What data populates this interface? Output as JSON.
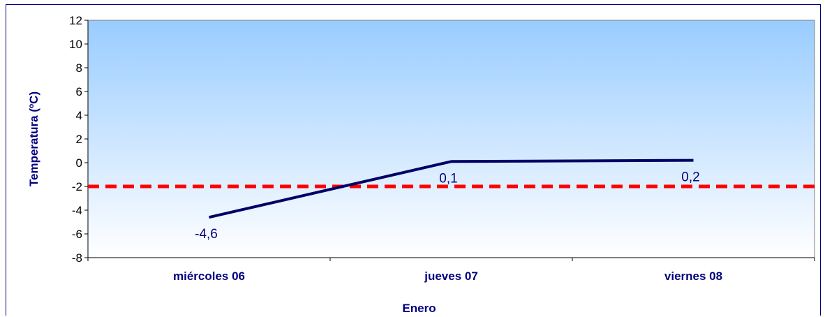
{
  "chart_data": {
    "type": "line",
    "categories": [
      "miércoles 06",
      "jueves 07",
      "viernes 08"
    ],
    "series": [
      {
        "values": [
          -4.6,
          0.1,
          0.2
        ],
        "data_labels": [
          "-4,6",
          "0,1",
          "0,2"
        ]
      }
    ],
    "reference_line": {
      "value": -2,
      "style": "dashed"
    },
    "title": "",
    "xlabel": "Enero",
    "ylabel": "Temperatura (ºC)",
    "ylim": [
      -8,
      12
    ],
    "yticks": [
      12,
      10,
      8,
      6,
      4,
      2,
      0,
      -2,
      -4,
      -6,
      -8
    ],
    "grid": false,
    "legend": "none",
    "colors": {
      "line": "#000066",
      "reference_line": "#ff0000",
      "plot_top": "#99ccff",
      "plot_bottom": "#ffffff",
      "text": "#000080"
    }
  }
}
